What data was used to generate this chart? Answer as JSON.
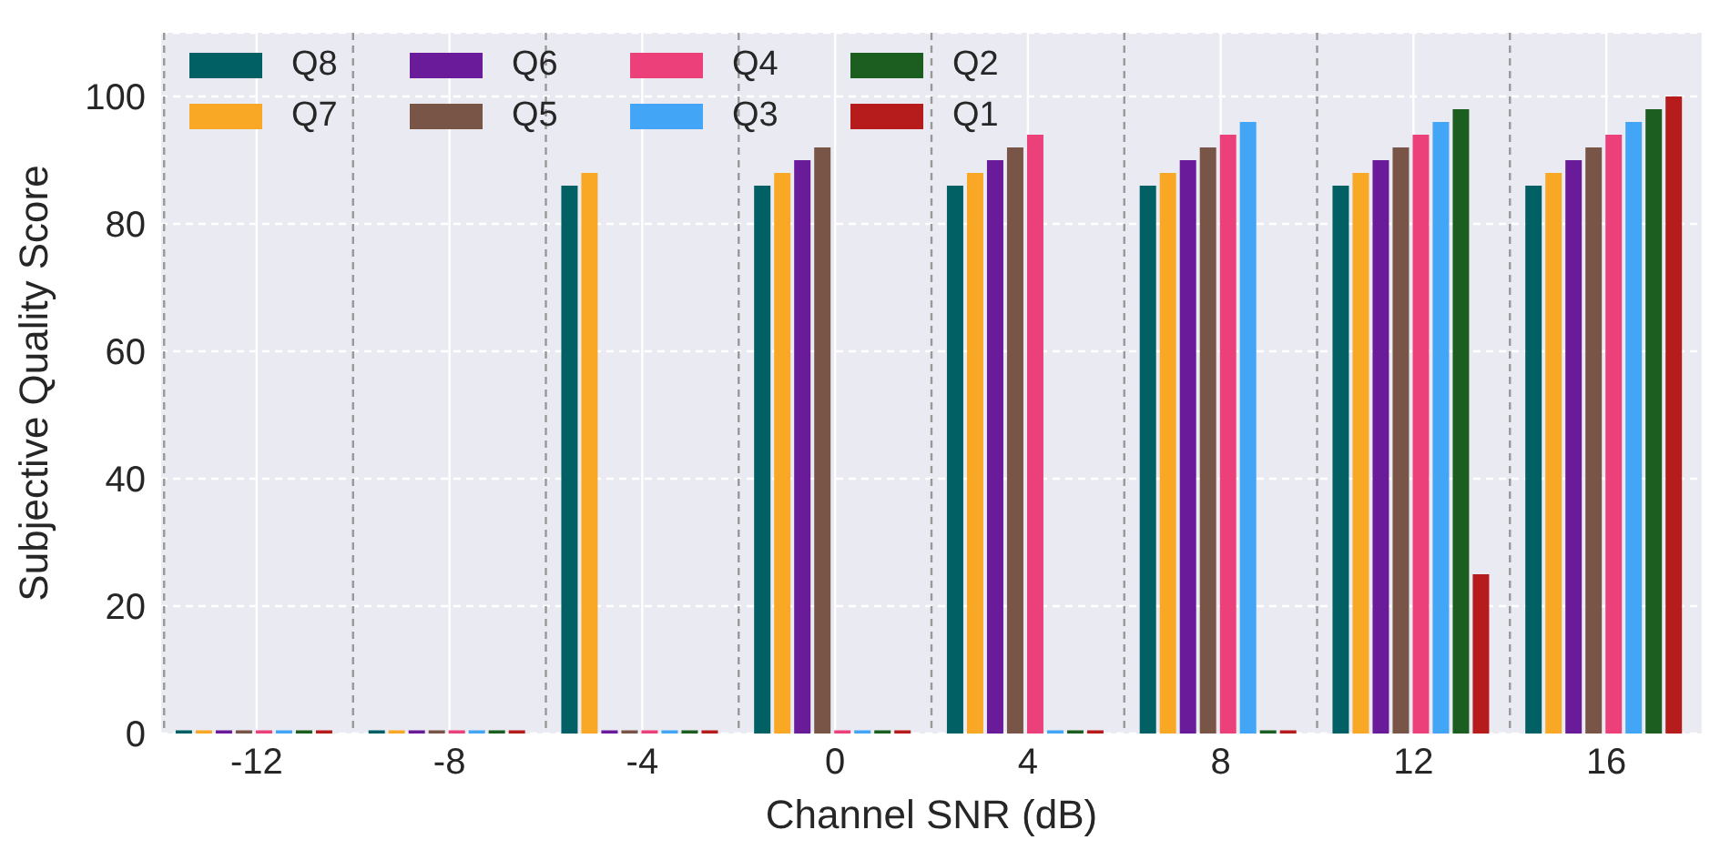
{
  "chart_data": {
    "type": "bar",
    "xlabel": "Channel SNR (dB)",
    "ylabel": "Subjective Quality Score",
    "categories": [
      "-12",
      "-8",
      "-4",
      "0",
      "4",
      "8",
      "12",
      "16"
    ],
    "series": [
      {
        "name": "Q8",
        "color": "#006064",
        "values": [
          0.5,
          0.5,
          86,
          86,
          86,
          86,
          86,
          86
        ]
      },
      {
        "name": "Q7",
        "color": "#f9a825",
        "values": [
          0.5,
          0.5,
          88,
          88,
          88,
          88,
          88,
          88
        ]
      },
      {
        "name": "Q6",
        "color": "#6a1b9a",
        "values": [
          0.5,
          0.5,
          0.5,
          90,
          90,
          90,
          90,
          90
        ]
      },
      {
        "name": "Q5",
        "color": "#795548",
        "values": [
          0.5,
          0.5,
          0.5,
          92,
          92,
          92,
          92,
          92
        ]
      },
      {
        "name": "Q4",
        "color": "#ec407a",
        "values": [
          0.5,
          0.5,
          0.5,
          0.5,
          94,
          94,
          94,
          94
        ]
      },
      {
        "name": "Q3",
        "color": "#42a5f5",
        "values": [
          0.5,
          0.5,
          0.5,
          0.5,
          0.5,
          96,
          96,
          96
        ]
      },
      {
        "name": "Q2",
        "color": "#1b5e20",
        "values": [
          0.5,
          0.5,
          0.5,
          0.5,
          0.5,
          0.5,
          98,
          98
        ]
      },
      {
        "name": "Q1",
        "color": "#b71c1c",
        "values": [
          0.5,
          0.5,
          0.5,
          0.5,
          0.5,
          0.5,
          25,
          100
        ]
      }
    ],
    "ylim": [
      0,
      110
    ],
    "yticks": [
      0,
      20,
      40,
      60,
      80,
      100
    ],
    "grid": true,
    "legend": "top left"
  }
}
